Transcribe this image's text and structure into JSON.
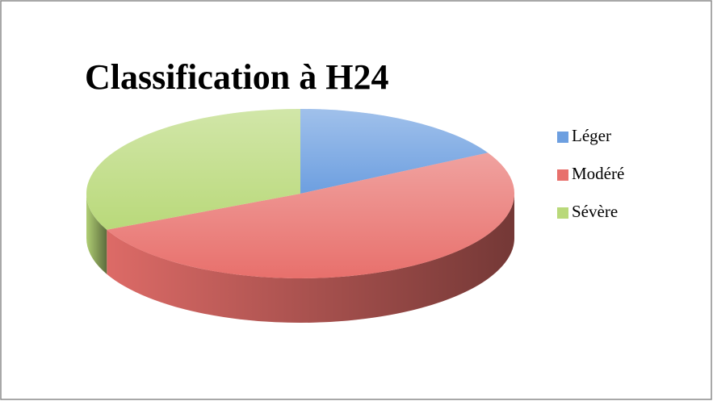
{
  "chart_data": {
    "type": "pie",
    "title": "Classification à H24",
    "categories": [
      "Léger",
      "Modéré",
      "Sévère"
    ],
    "values": [
      17,
      51,
      32
    ],
    "colors": [
      "#6d9fe0",
      "#e8706c",
      "#b9d97a"
    ],
    "legend": "right"
  }
}
